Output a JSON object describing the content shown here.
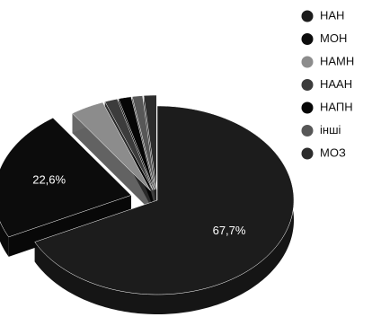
{
  "chart_data": {
    "type": "pie",
    "categories": [
      "НАН",
      "МОН",
      "НАМН",
      "НААН",
      "НАПН",
      "інші",
      "МОЗ"
    ],
    "values": [
      67.7,
      22.6,
      4.0,
      1.5,
      1.5,
      1.2,
      1.5
    ],
    "value_labels": [
      "67,7%",
      "22,6%",
      null,
      null,
      null,
      null,
      null
    ],
    "colors": [
      "#1c1c1c",
      "#0c0c0c",
      "#8c8c8c",
      "#3c3c3c",
      "#060606",
      "#575757",
      "#2c2c2c"
    ],
    "legend": "right"
  }
}
